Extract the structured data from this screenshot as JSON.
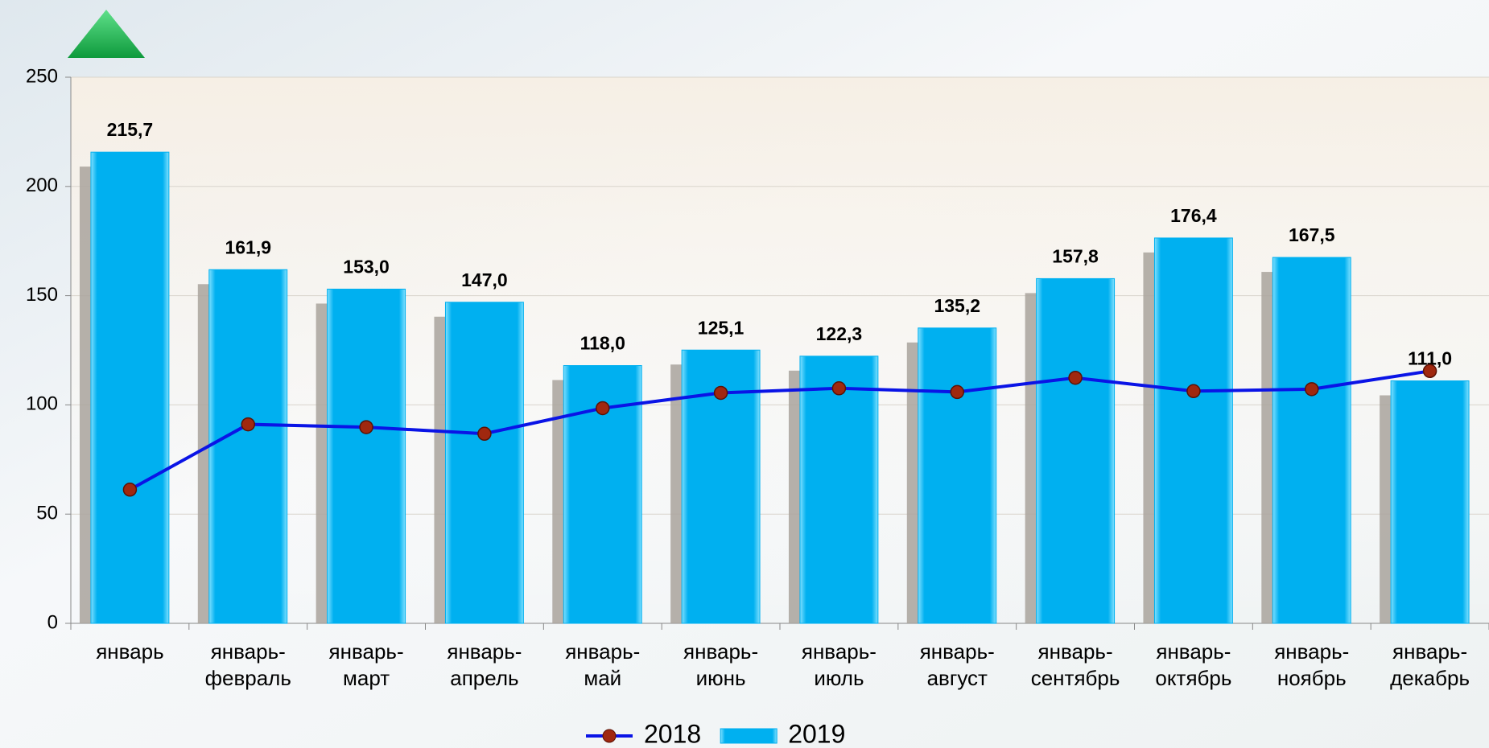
{
  "chart_data": {
    "type": "bar_line",
    "categories": [
      [
        "январь"
      ],
      [
        "январь-",
        "февраль"
      ],
      [
        "январь-",
        "март"
      ],
      [
        "январь-",
        "апрель"
      ],
      [
        "январь-",
        "май"
      ],
      [
        "январь-",
        "июнь"
      ],
      [
        "январь-",
        "июль"
      ],
      [
        "январь-",
        "август"
      ],
      [
        "январь-",
        "сентябрь"
      ],
      [
        "январь-",
        "октябрь"
      ],
      [
        "январь-",
        "ноябрь"
      ],
      [
        "январь-",
        "декабрь"
      ]
    ],
    "series": [
      {
        "name": "2018",
        "type": "line",
        "color": "#0a14e6",
        "values": [
          61.2,
          91.1,
          89.8,
          86.8,
          98.5,
          105.5,
          107.6,
          105.9,
          112.4,
          106.3,
          107.2,
          115.5
        ]
      },
      {
        "name": "2019",
        "type": "bar",
        "color": "#00b0f0",
        "values": [
          215.7,
          161.9,
          153.0,
          147.0,
          118.0,
          125.1,
          122.3,
          135.2,
          157.8,
          176.4,
          167.5,
          111.0
        ],
        "value_labels": [
          "215,7",
          "161,9",
          "153,0",
          "147,0",
          "118,0",
          "125,1",
          "122,3",
          "135,2",
          "157,8",
          "176,4",
          "167,5",
          "111,0"
        ]
      }
    ],
    "ylim": [
      0,
      250
    ],
    "yticks": [
      0,
      50,
      100,
      150,
      200,
      250
    ],
    "grid": true
  }
}
